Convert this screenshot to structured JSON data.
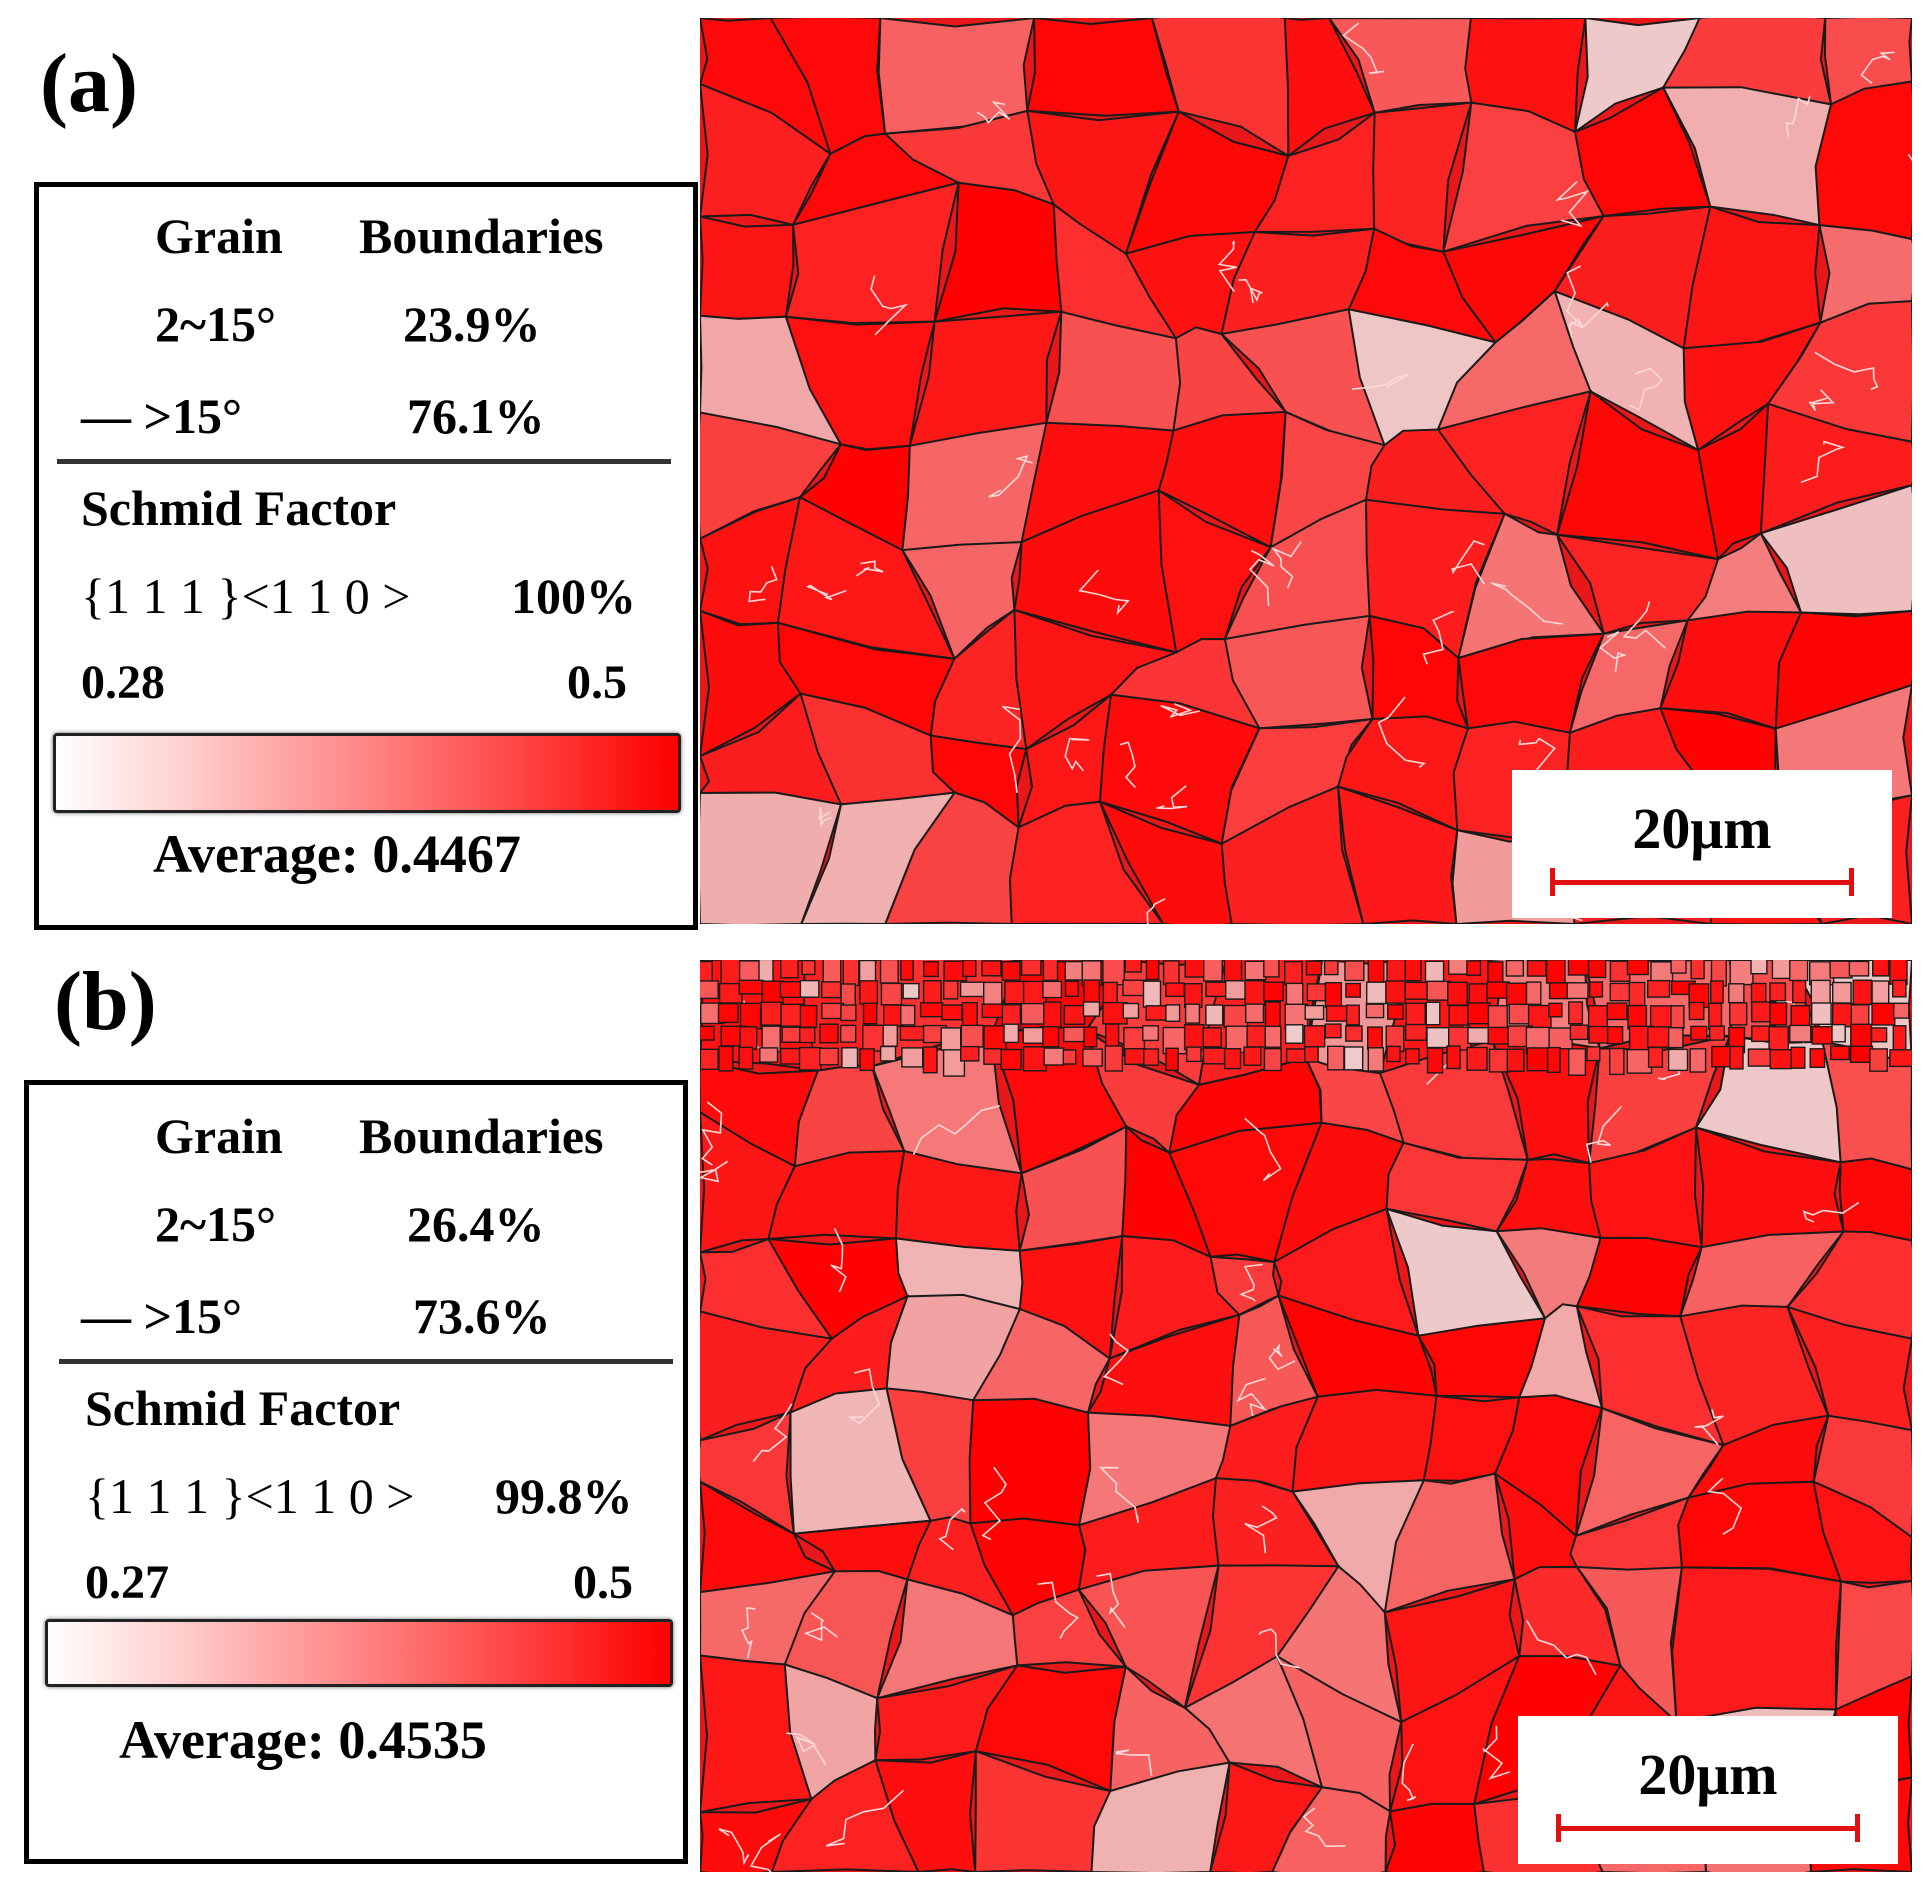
{
  "figure": {
    "panels": [
      {
        "id": "a",
        "label": "(a)",
        "legend": {
          "header": [
            "Grain",
            "Boundaries"
          ],
          "rows": [
            {
              "angle": "2~15°",
              "value": "23.9%"
            },
            {
              "angle": "— >15°",
              "value": "76.1%"
            }
          ],
          "schmid_title": "Schmid Factor",
          "slip_system": "{1 1 1 }<1 1 0 >",
          "slip_fraction": "100%",
          "scale_min": "0.28",
          "scale_max": "0.5",
          "average": "Average: 0.4467"
        },
        "scale_bar": "20μm"
      },
      {
        "id": "b",
        "label": "(b)",
        "legend": {
          "header": [
            "Grain",
            "Boundaries"
          ],
          "rows": [
            {
              "angle": "2~15°",
              "value": "26.4%"
            },
            {
              "angle": "— >15°",
              "value": "73.6%"
            }
          ],
          "schmid_title": "Schmid Factor",
          "slip_system": "{1 1 1 }<1 1 0 >",
          "slip_fraction": "99.8%",
          "scale_min": "0.27",
          "scale_max": "0.5",
          "average": "Average: 0.4535"
        },
        "scale_bar": "20μm"
      }
    ],
    "colors": {
      "low": "#ffffff",
      "high": "#ff0000",
      "grain_boundary": "#1a1a1a",
      "low_angle_boundary": "#ffd8d8"
    }
  }
}
